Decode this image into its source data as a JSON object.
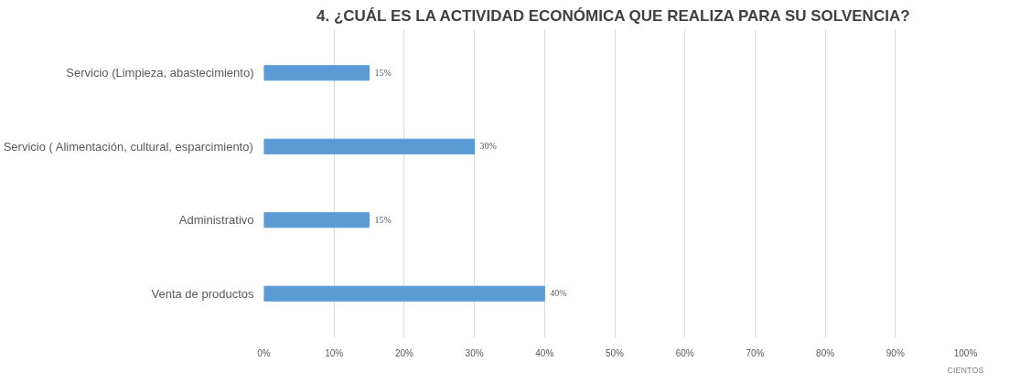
{
  "chart_data": {
    "type": "bar",
    "orientation": "horizontal",
    "title": "4. ¿CUÁL ES LA ACTIVIDAD ECONÓMICA QUE REALIZA PARA SU SOLVENCIA?",
    "xlabel": "CIENTOS",
    "categories": [
      "Servicio (Limpieza, abastecimiento)",
      "Servicio ( Alimentación, cultural, esparcimiento)",
      "Administrativo",
      "Venta de productos"
    ],
    "values": [
      15,
      30,
      15,
      40
    ],
    "value_labels": [
      "15%",
      "30%",
      "15%",
      "40%"
    ],
    "color": "#5b9bd5",
    "xlim": [
      0,
      100
    ],
    "xticks": [
      {
        "value": 0,
        "label": "0%"
      },
      {
        "value": 10,
        "label": "10%"
      },
      {
        "value": 20,
        "label": "20%"
      },
      {
        "value": 30,
        "label": "30%"
      },
      {
        "value": 40,
        "label": "40%"
      },
      {
        "value": 50,
        "label": "50%"
      },
      {
        "value": 60,
        "label": "60%"
      },
      {
        "value": 70,
        "label": "70%"
      },
      {
        "value": 80,
        "label": "80%"
      },
      {
        "value": 90,
        "label": "90%"
      },
      {
        "value": 100,
        "label": "100%"
      }
    ],
    "grid": "x"
  }
}
